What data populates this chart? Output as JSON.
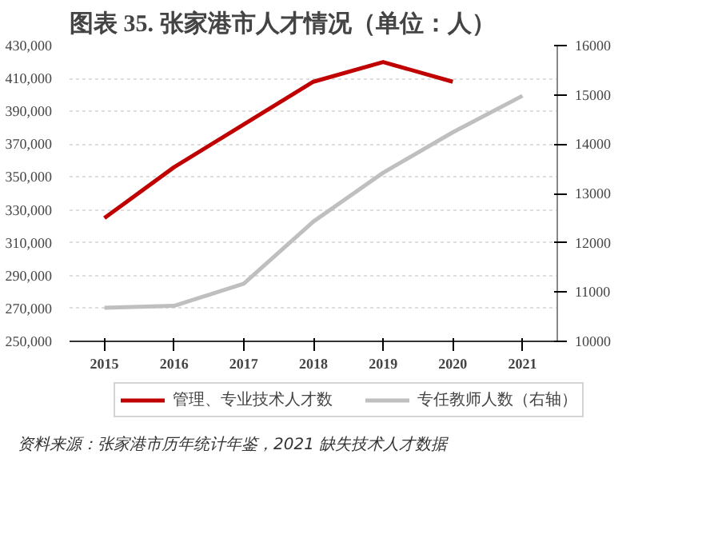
{
  "chart_data": {
    "type": "line",
    "title": "图表 35. 张家港市人才情况（单位：人）",
    "categories": [
      "2015",
      "2016",
      "2017",
      "2018",
      "2019",
      "2020",
      "2021"
    ],
    "series": [
      {
        "name": "管理、专业技术人才数",
        "color": "#c00000",
        "values": [
          325000,
          356000,
          382000,
          408000,
          420000,
          408000,
          null
        ]
      },
      {
        "name": "专任教师人数（右轴）",
        "color": "#bfbfbf",
        "axis": "y2",
        "values": [
          10680,
          10720,
          11170,
          12430,
          13420,
          14240,
          14980
        ]
      }
    ],
    "ylim": [
      250000,
      430000
    ],
    "yticks": [
      {
        "value": 250000,
        "label": "250,000"
      },
      {
        "value": 270000,
        "label": "270,000"
      },
      {
        "value": 290000,
        "label": "290,000"
      },
      {
        "value": 310000,
        "label": "310,000"
      },
      {
        "value": 330000,
        "label": "330,000"
      },
      {
        "value": 350000,
        "label": "350,000"
      },
      {
        "value": 370000,
        "label": "370,000"
      },
      {
        "value": 390000,
        "label": "390,000"
      },
      {
        "value": 410000,
        "label": "410,000"
      },
      {
        "value": 430000,
        "label": "430,000"
      }
    ],
    "y2lim": [
      10000,
      16000
    ],
    "y2ticks": [
      10000,
      11000,
      12000,
      13000,
      14000,
      15000,
      16000
    ],
    "grid": "y",
    "legend": "bottom",
    "marker": "none",
    "line_style": "solid",
    "annotations": [
      "资料来源：张家港市历年统计年鉴，2021 缺失技术人才数据"
    ]
  }
}
